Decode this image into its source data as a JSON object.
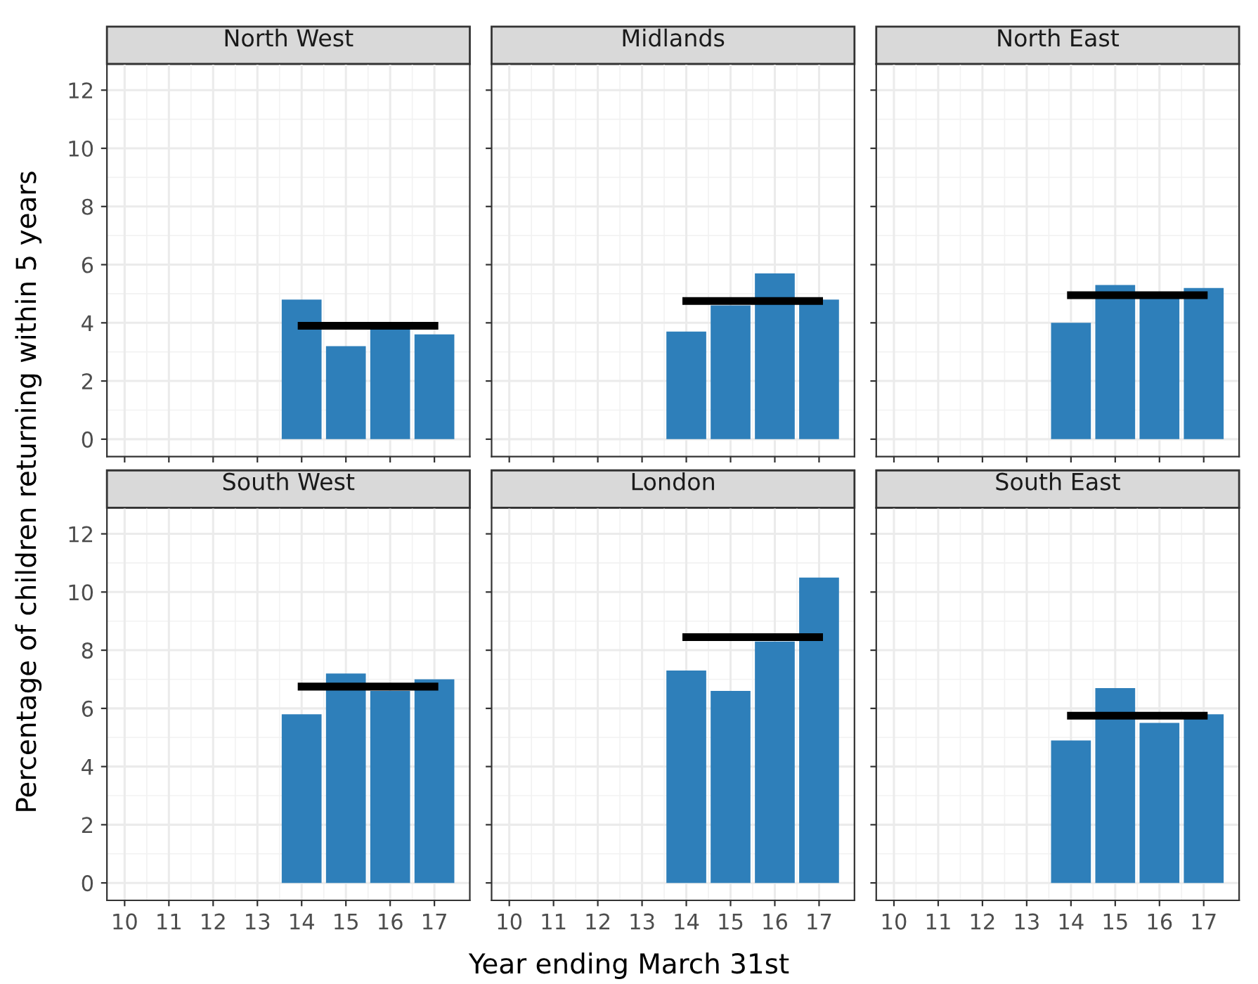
{
  "chart_data": [
    {
      "type": "bar",
      "title": "North West",
      "ylabel": "Percentage of children returning within 5 years",
      "xlim": [
        9.6,
        17.8
      ],
      "ylim": [
        -0.6,
        12.9
      ],
      "xticks": [
        10,
        11,
        12,
        13,
        14,
        15,
        16,
        17
      ],
      "yticks": [
        0,
        2,
        4,
        6,
        8,
        10,
        12
      ],
      "grid": true,
      "tick_labels": "y",
      "series": [
        {
          "color": "#2e7fba",
          "x": [
            14,
            15,
            16,
            17
          ],
          "values": [
            4.8,
            3.2,
            3.8,
            3.6
          ]
        },
        {
          "type": "line",
          "color": "#000000",
          "x": [
            14,
            17
          ],
          "values": [
            3.9,
            3.9
          ]
        }
      ]
    },
    {
      "type": "bar",
      "title": "Midlands",
      "xlim": [
        9.6,
        17.8
      ],
      "ylim": [
        -0.6,
        12.9
      ],
      "xticks": [
        10,
        11,
        12,
        13,
        14,
        15,
        16,
        17
      ],
      "yticks": [
        0,
        2,
        4,
        6,
        8,
        10,
        12
      ],
      "grid": true,
      "tick_labels": false,
      "series": [
        {
          "color": "#2e7fba",
          "x": [
            14,
            15,
            16,
            17
          ],
          "values": [
            3.7,
            4.6,
            5.7,
            4.8
          ]
        },
        {
          "type": "line",
          "color": "#000000",
          "x": [
            14,
            17
          ],
          "values": [
            4.75,
            4.75
          ]
        }
      ]
    },
    {
      "type": "bar",
      "title": "North East",
      "xlim": [
        9.6,
        17.8
      ],
      "ylim": [
        -0.6,
        12.9
      ],
      "xticks": [
        10,
        11,
        12,
        13,
        14,
        15,
        16,
        17
      ],
      "yticks": [
        0,
        2,
        4,
        6,
        8,
        10,
        12
      ],
      "grid": true,
      "tick_labels": false,
      "series": [
        {
          "color": "#2e7fba",
          "x": [
            14,
            15,
            16,
            17
          ],
          "values": [
            4.0,
            5.3,
            4.9,
            5.2
          ]
        },
        {
          "type": "line",
          "color": "#000000",
          "x": [
            14,
            17
          ],
          "values": [
            4.95,
            4.95
          ]
        }
      ]
    },
    {
      "type": "bar",
      "title": "South West",
      "xlim": [
        9.6,
        17.8
      ],
      "ylim": [
        -0.6,
        12.9
      ],
      "xticks": [
        10,
        11,
        12,
        13,
        14,
        15,
        16,
        17
      ],
      "yticks": [
        0,
        2,
        4,
        6,
        8,
        10,
        12
      ],
      "grid": true,
      "series": [
        {
          "color": "#2e7fba",
          "x": [
            14,
            15,
            16,
            17
          ],
          "values": [
            5.8,
            7.2,
            6.6,
            7.0
          ]
        },
        {
          "type": "line",
          "color": "#000000",
          "x": [
            14,
            17
          ],
          "values": [
            6.75,
            6.75
          ]
        }
      ]
    },
    {
      "type": "bar",
      "title": "London",
      "xlabel": "Year ending March 31st",
      "xlim": [
        9.6,
        17.8
      ],
      "ylim": [
        -0.6,
        12.9
      ],
      "xticks": [
        10,
        11,
        12,
        13,
        14,
        15,
        16,
        17
      ],
      "yticks": [
        0,
        2,
        4,
        6,
        8,
        10,
        12
      ],
      "grid": true,
      "tick_labels": "x",
      "series": [
        {
          "color": "#2e7fba",
          "x": [
            14,
            15,
            16,
            17
          ],
          "values": [
            7.3,
            6.6,
            8.3,
            10.5
          ]
        },
        {
          "type": "line",
          "color": "#000000",
          "x": [
            14,
            17
          ],
          "values": [
            8.45,
            8.45
          ]
        }
      ]
    },
    {
      "type": "bar",
      "title": "South East",
      "xlim": [
        9.6,
        17.8
      ],
      "ylim": [
        -0.6,
        12.9
      ],
      "xticks": [
        10,
        11,
        12,
        13,
        14,
        15,
        16,
        17
      ],
      "yticks": [
        0,
        2,
        4,
        6,
        8,
        10,
        12
      ],
      "grid": true,
      "tick_labels": "x",
      "series": [
        {
          "color": "#2e7fba",
          "x": [
            14,
            15,
            16,
            17
          ],
          "values": [
            4.9,
            6.7,
            5.5,
            5.8
          ]
        },
        {
          "type": "line",
          "color": "#000000",
          "x": [
            14,
            17
          ],
          "values": [
            5.75,
            5.75
          ]
        }
      ]
    }
  ]
}
